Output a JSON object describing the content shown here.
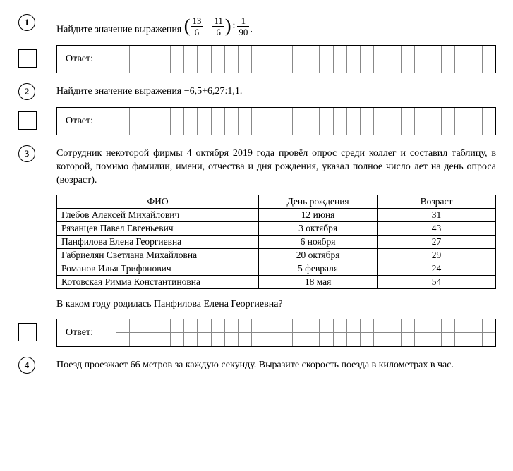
{
  "answer_label": "Ответ:",
  "grid_cols": 28,
  "q1": {
    "num": "1",
    "prefix": "Найдите значение выражения ",
    "f1_num": "13",
    "f1_den": "6",
    "op1": "−",
    "f2_num": "11",
    "f2_den": "6",
    "op2": ":",
    "f3_num": "1",
    "f3_den": "90",
    "suffix": "."
  },
  "q2": {
    "num": "2",
    "text": "Найдите значение выражения −6,5+6,27:1,1."
  },
  "q3": {
    "num": "3",
    "intro": "Сотрудник некоторой фирмы 4 октября 2019 года провёл опрос среди коллег и составил таблицу, в которой, помимо фамилии, имени, отчества и дня рождения, указал полное число лет на день опроса (возраст).",
    "headers": {
      "fio": "ФИО",
      "dob": "День рождения",
      "age": "Возраст"
    },
    "rows": [
      {
        "fio": "Глебов Алексей Михайлович",
        "dob": "12 июня",
        "age": "31"
      },
      {
        "fio": "Рязанцев Павел Евгеньевич",
        "dob": "3 октября",
        "age": "43"
      },
      {
        "fio": "Панфилова Елена Георгиевна",
        "dob": "6 ноября",
        "age": "27"
      },
      {
        "fio": "Габриелян Светлана Михайловна",
        "dob": "20 октября",
        "age": "29"
      },
      {
        "fio": "Романов Илья Трифонович",
        "dob": "5 февраля",
        "age": "24"
      },
      {
        "fio": "Котовская Римма Константиновна",
        "dob": "18 мая",
        "age": "54"
      }
    ],
    "followup": "В каком году родилась Панфилова Елена Георгиевна?"
  },
  "q4": {
    "num": "4",
    "text": "Поезд проезжает 66 метров за каждую секунду. Выразите скорость поезда в километрах в час."
  }
}
